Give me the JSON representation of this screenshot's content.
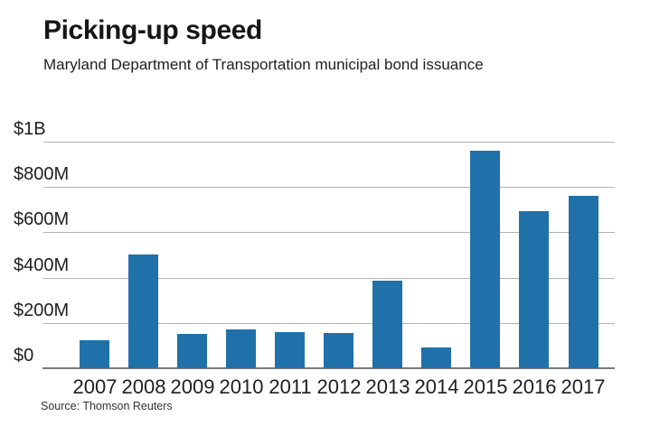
{
  "header": {
    "title": "Picking-up speed",
    "subtitle": "Maryland Department of Transportation municipal bond issuance"
  },
  "footer": {
    "source": "Source: Thomson Reuters"
  },
  "colors": {
    "bar": "#2071a9",
    "gridline": "#b3b3b3",
    "baseline": "#7a7a7a",
    "text": "#1e1e1e"
  },
  "chart_data": {
    "type": "bar",
    "title": "Picking-up speed",
    "subtitle": "Maryland Department of Transportation municipal bond issuance",
    "source": "Source: Thomson Reuters",
    "unit": "USD millions",
    "categories": [
      "2007",
      "2008",
      "2009",
      "2010",
      "2011",
      "2012",
      "2013",
      "2014",
      "2015",
      "2016",
      "2017"
    ],
    "values": [
      125,
      500,
      150,
      170,
      160,
      155,
      385,
      90,
      960,
      695,
      760
    ],
    "xlabel": "",
    "ylabel": "",
    "ylim": [
      0,
      1000
    ],
    "yticks": [
      {
        "label": "$1B",
        "value": 1000
      },
      {
        "label": "$800M",
        "value": 800
      },
      {
        "label": "$600M",
        "value": 600
      },
      {
        "label": "$400M",
        "value": 400
      },
      {
        "label": "$200M",
        "value": 200
      },
      {
        "label": "$0",
        "value": 0
      }
    ],
    "grid": true,
    "legend": false
  }
}
